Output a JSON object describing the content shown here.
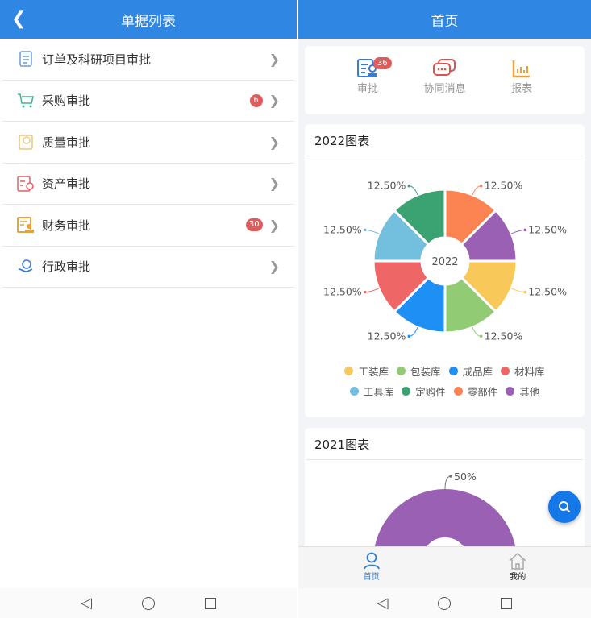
{
  "left": {
    "header": {
      "title": "单据列表",
      "back_icon": "chevron-left-icon"
    },
    "items": [
      {
        "label": "订单及科研项目审批",
        "icon": "document-icon",
        "color": "#6a9bd8",
        "badge": null
      },
      {
        "label": "采购审批",
        "icon": "cart-icon",
        "color": "#3bb58a",
        "badge": "6"
      },
      {
        "label": "质量审批",
        "icon": "quality-icon",
        "color": "#e8c77a",
        "badge": null
      },
      {
        "label": "资产审批",
        "icon": "certificate-icon",
        "color": "#e06060",
        "badge": null
      },
      {
        "label": "财务审批",
        "icon": "finance-icon",
        "color": "#e8a23a",
        "badge": "30"
      },
      {
        "label": "行政审批",
        "icon": "hand-coin-icon",
        "color": "#3a7bd5",
        "badge": null
      }
    ]
  },
  "right": {
    "header": {
      "title": "首页"
    },
    "quick": [
      {
        "label": "审批",
        "badge": "36",
        "icon": "approval-icon",
        "color": "#3a7bd5"
      },
      {
        "label": "协同消息",
        "icon": "chat-icon",
        "color": "#d9534f"
      },
      {
        "label": "报表",
        "icon": "bar-chart-icon",
        "color": "#e8a23a"
      }
    ],
    "tabbar": [
      {
        "label": "首页",
        "active": true,
        "icon": "user-icon"
      },
      {
        "label": "我的",
        "active": false,
        "icon": "home-icon"
      }
    ],
    "fab_icon": "search-icon"
  },
  "chart_data": [
    {
      "type": "pie",
      "title": "2022图表",
      "center_label": "2022",
      "categories": [
        "工装库",
        "包装库",
        "成品库",
        "材料库",
        "工具库",
        "定购件",
        "零部件",
        "其他"
      ],
      "values": [
        12.5,
        12.5,
        12.5,
        12.5,
        12.5,
        12.5,
        12.5,
        12.5
      ],
      "labels": [
        "12.50%",
        "12.50%",
        "12.50%",
        "12.50%",
        "12.50%",
        "12.50%",
        "12.50%",
        "12.50%"
      ],
      "colors": [
        "#f8c858",
        "#91cc75",
        "#1e8ff5",
        "#ee6666",
        "#73c0de",
        "#3ba272",
        "#fc8452",
        "#9a60b4"
      ],
      "legend": "bottom"
    },
    {
      "type": "pie",
      "title": "2021图表",
      "values": [
        50
      ],
      "labels": [
        "50%"
      ],
      "colors": [
        "#9a60b4"
      ]
    }
  ],
  "system_nav": [
    "back-icon",
    "home-icon",
    "recents-icon"
  ]
}
